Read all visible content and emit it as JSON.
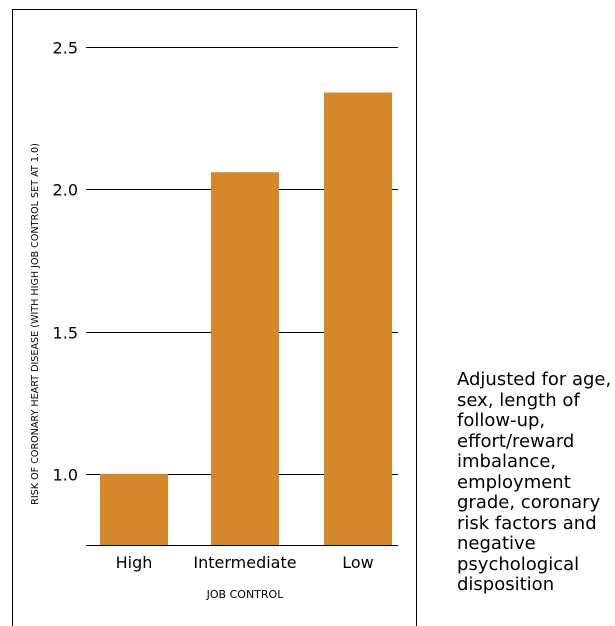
{
  "chart_data": {
    "type": "bar",
    "categories": [
      "High",
      "Intermediate",
      "Low"
    ],
    "values": [
      1.0,
      2.06,
      2.34
    ],
    "xlabel": "JOB CONTROL",
    "ylabel": "RISK OF CORONARY HEART DISEASE (WITH HIGH JOB CONTROL SET AT 1.0)",
    "ylim": [
      0.75,
      2.5
    ],
    "yticks": [
      "1.0",
      "1.5",
      "2.0",
      "2.5"
    ],
    "bar_color": "#d4882a",
    "grid": true
  },
  "note": "Adjusted for age, sex, length of follow-up, effort/reward imbalance, employment grade, coronary risk factors and negative psychological disposition"
}
